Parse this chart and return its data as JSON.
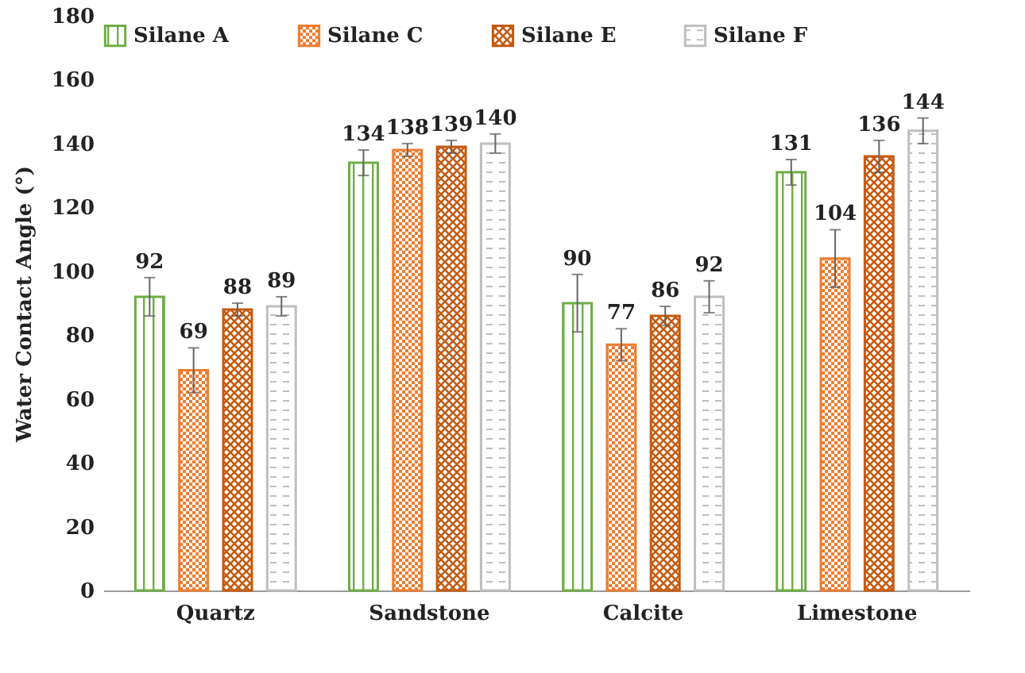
{
  "chart_data": {
    "type": "bar",
    "ylabel": "Water Contact Angle (°)",
    "categories": [
      "Quartz",
      "Sandstone",
      "Calcite",
      "Limestone"
    ],
    "series": [
      {
        "name": "Silane A",
        "color": "#70ad47",
        "values": [
          92,
          134,
          90,
          131
        ],
        "errors": [
          6,
          4,
          9,
          4
        ]
      },
      {
        "name": "Silane C",
        "color": "#ed7d31",
        "values": [
          69,
          138,
          77,
          104
        ],
        "errors": [
          7,
          2,
          5,
          9
        ]
      },
      {
        "name": "Silane E",
        "color": "#c55a11",
        "values": [
          88,
          139,
          86,
          136
        ],
        "errors": [
          2,
          2,
          3,
          5
        ]
      },
      {
        "name": "Silane F",
        "color": "#bfbfbf",
        "values": [
          89,
          140,
          92,
          144
        ],
        "errors": [
          3,
          3,
          5,
          4
        ]
      }
    ],
    "ylim": [
      0,
      180
    ],
    "yticks": [
      0,
      20,
      40,
      60,
      80,
      100,
      120,
      140,
      160,
      180
    ],
    "grid": false,
    "legend": "top",
    "data_labels": true
  }
}
